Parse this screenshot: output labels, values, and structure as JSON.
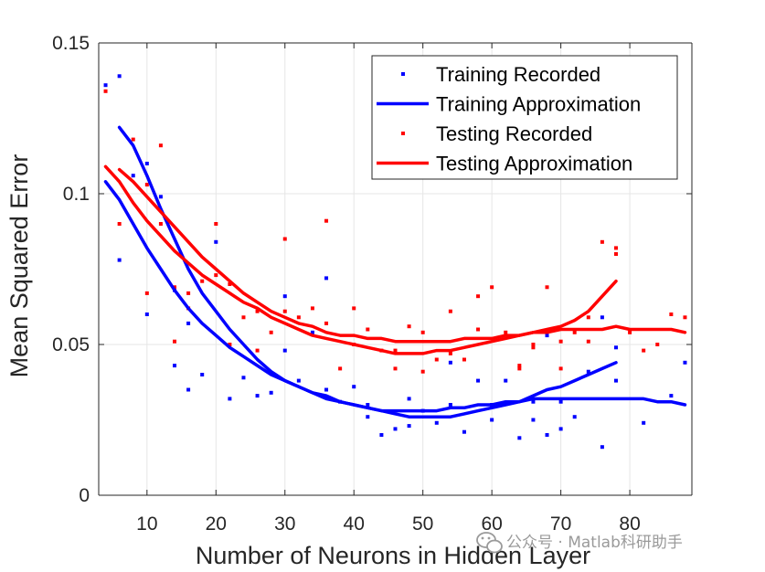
{
  "chart_data": {
    "type": "scatter",
    "xlabel": "Number of Neurons in Hidden Layer",
    "ylabel": "Mean Squared Error",
    "xlim": [
      3,
      89
    ],
    "ylim": [
      0,
      0.15
    ],
    "xticks": [
      10,
      20,
      30,
      40,
      50,
      60,
      70,
      80
    ],
    "xtick_labels": [
      "10",
      "20",
      "30",
      "40",
      "50",
      "60",
      "70",
      "80"
    ],
    "yticks": [
      0,
      0.05,
      0.1,
      0.15
    ],
    "ytick_labels": [
      "0",
      "0.05",
      "0.1",
      "0.15"
    ],
    "grid": true,
    "legend_position": "top-right",
    "series": [
      {
        "name": "Training Recorded",
        "kind": "markers",
        "color": "#0000ff",
        "points": [
          [
            4,
            0.136
          ],
          [
            6,
            0.139
          ],
          [
            6,
            0.078
          ],
          [
            8,
            0.106
          ],
          [
            10,
            0.11
          ],
          [
            10,
            0.06
          ],
          [
            12,
            0.099
          ],
          [
            14,
            0.068
          ],
          [
            14,
            0.043
          ],
          [
            16,
            0.057
          ],
          [
            16,
            0.035
          ],
          [
            18,
            0.04
          ],
          [
            20,
            0.084
          ],
          [
            22,
            0.032
          ],
          [
            24,
            0.039
          ],
          [
            26,
            0.033
          ],
          [
            28,
            0.034
          ],
          [
            30,
            0.066
          ],
          [
            30,
            0.048
          ],
          [
            32,
            0.038
          ],
          [
            34,
            0.054
          ],
          [
            36,
            0.072
          ],
          [
            36,
            0.035
          ],
          [
            38,
            0.031
          ],
          [
            40,
            0.036
          ],
          [
            42,
            0.026
          ],
          [
            42,
            0.03
          ],
          [
            44,
            0.02
          ],
          [
            46,
            0.022
          ],
          [
            48,
            0.032
          ],
          [
            48,
            0.023
          ],
          [
            50,
            0.028
          ],
          [
            52,
            0.024
          ],
          [
            54,
            0.03
          ],
          [
            54,
            0.044
          ],
          [
            56,
            0.021
          ],
          [
            58,
            0.038
          ],
          [
            60,
            0.025
          ],
          [
            60,
            0.03
          ],
          [
            62,
            0.038
          ],
          [
            64,
            0.019
          ],
          [
            66,
            0.025
          ],
          [
            66,
            0.031
          ],
          [
            68,
            0.02
          ],
          [
            68,
            0.053
          ],
          [
            70,
            0.031
          ],
          [
            70,
            0.022
          ],
          [
            72,
            0.026
          ],
          [
            74,
            0.041
          ],
          [
            76,
            0.016
          ],
          [
            76,
            0.059
          ],
          [
            78,
            0.038
          ],
          [
            78,
            0.049
          ],
          [
            82,
            0.024
          ],
          [
            86,
            0.033
          ],
          [
            88,
            0.044
          ]
        ]
      },
      {
        "name": "Testing Recorded",
        "kind": "markers",
        "color": "#ff0000",
        "points": [
          [
            4,
            0.134
          ],
          [
            6,
            0.09
          ],
          [
            8,
            0.118
          ],
          [
            10,
            0.067
          ],
          [
            10,
            0.103
          ],
          [
            12,
            0.116
          ],
          [
            12,
            0.09
          ],
          [
            14,
            0.051
          ],
          [
            14,
            0.069
          ],
          [
            16,
            0.067
          ],
          [
            16,
            0.062
          ],
          [
            18,
            0.071
          ],
          [
            20,
            0.09
          ],
          [
            20,
            0.073
          ],
          [
            22,
            0.07
          ],
          [
            22,
            0.05
          ],
          [
            24,
            0.059
          ],
          [
            26,
            0.061
          ],
          [
            26,
            0.048
          ],
          [
            28,
            0.054
          ],
          [
            30,
            0.085
          ],
          [
            30,
            0.061
          ],
          [
            32,
            0.059
          ],
          [
            34,
            0.062
          ],
          [
            36,
            0.091
          ],
          [
            36,
            0.057
          ],
          [
            38,
            0.042
          ],
          [
            40,
            0.062
          ],
          [
            40,
            0.05
          ],
          [
            42,
            0.055
          ],
          [
            44,
            0.048
          ],
          [
            46,
            0.042
          ],
          [
            46,
            0.048
          ],
          [
            48,
            0.056
          ],
          [
            50,
            0.054
          ],
          [
            50,
            0.041
          ],
          [
            52,
            0.045
          ],
          [
            54,
            0.061
          ],
          [
            54,
            0.047
          ],
          [
            56,
            0.045
          ],
          [
            58,
            0.066
          ],
          [
            58,
            0.055
          ],
          [
            60,
            0.069
          ],
          [
            62,
            0.054
          ],
          [
            64,
            0.043
          ],
          [
            64,
            0.042
          ],
          [
            66,
            0.049
          ],
          [
            66,
            0.05
          ],
          [
            68,
            0.069
          ],
          [
            70,
            0.042
          ],
          [
            70,
            0.051
          ],
          [
            72,
            0.054
          ],
          [
            74,
            0.059
          ],
          [
            74,
            0.051
          ],
          [
            76,
            0.084
          ],
          [
            78,
            0.082
          ],
          [
            78,
            0.08
          ],
          [
            80,
            0.054
          ],
          [
            82,
            0.048
          ],
          [
            84,
            0.05
          ],
          [
            86,
            0.06
          ],
          [
            88,
            0.059
          ]
        ]
      },
      {
        "name": "Training Approximation",
        "kind": "lines",
        "color": "#0000ff",
        "show_in_legend": true,
        "curves": [
          [
            [
              6,
              0.122
            ],
            [
              8,
              0.116
            ],
            [
              10,
              0.106
            ],
            [
              12,
              0.095
            ],
            [
              14,
              0.085
            ],
            [
              16,
              0.075
            ],
            [
              18,
              0.067
            ],
            [
              20,
              0.061
            ],
            [
              22,
              0.055
            ],
            [
              24,
              0.05
            ],
            [
              26,
              0.045
            ],
            [
              28,
              0.041
            ],
            [
              30,
              0.038
            ],
            [
              32,
              0.036
            ],
            [
              34,
              0.034
            ],
            [
              36,
              0.032
            ],
            [
              38,
              0.031
            ],
            [
              40,
              0.03
            ],
            [
              42,
              0.029
            ],
            [
              44,
              0.028
            ],
            [
              46,
              0.028
            ],
            [
              48,
              0.028
            ],
            [
              50,
              0.028
            ],
            [
              52,
              0.028
            ],
            [
              54,
              0.029
            ],
            [
              56,
              0.029
            ],
            [
              58,
              0.03
            ],
            [
              60,
              0.03
            ],
            [
              62,
              0.031
            ],
            [
              64,
              0.031
            ],
            [
              66,
              0.032
            ],
            [
              68,
              0.032
            ],
            [
              70,
              0.032
            ],
            [
              72,
              0.032
            ],
            [
              74,
              0.032
            ],
            [
              76,
              0.032
            ],
            [
              78,
              0.032
            ],
            [
              80,
              0.032
            ],
            [
              82,
              0.032
            ],
            [
              84,
              0.031
            ],
            [
              86,
              0.031
            ],
            [
              88,
              0.03
            ]
          ],
          [
            [
              4,
              0.104
            ],
            [
              6,
              0.098
            ],
            [
              8,
              0.09
            ],
            [
              10,
              0.082
            ],
            [
              12,
              0.075
            ],
            [
              14,
              0.068
            ],
            [
              16,
              0.062
            ],
            [
              18,
              0.057
            ],
            [
              20,
              0.053
            ],
            [
              22,
              0.049
            ],
            [
              24,
              0.046
            ],
            [
              26,
              0.043
            ],
            [
              28,
              0.04
            ],
            [
              30,
              0.038
            ],
            [
              32,
              0.036
            ],
            [
              34,
              0.034
            ],
            [
              36,
              0.033
            ],
            [
              38,
              0.031
            ],
            [
              40,
              0.03
            ],
            [
              42,
              0.029
            ],
            [
              44,
              0.028
            ],
            [
              46,
              0.027
            ],
            [
              48,
              0.026
            ],
            [
              50,
              0.026
            ],
            [
              52,
              0.026
            ],
            [
              54,
              0.026
            ],
            [
              56,
              0.027
            ],
            [
              58,
              0.028
            ],
            [
              60,
              0.029
            ],
            [
              62,
              0.03
            ],
            [
              64,
              0.031
            ],
            [
              66,
              0.033
            ],
            [
              68,
              0.035
            ],
            [
              70,
              0.036
            ],
            [
              72,
              0.038
            ],
            [
              74,
              0.04
            ],
            [
              76,
              0.042
            ],
            [
              78,
              0.044
            ]
          ]
        ]
      },
      {
        "name": "Testing Approximation",
        "kind": "lines",
        "color": "#ff0000",
        "show_in_legend": true,
        "curves": [
          [
            [
              4,
              0.109
            ],
            [
              6,
              0.104
            ],
            [
              8,
              0.097
            ],
            [
              10,
              0.091
            ],
            [
              12,
              0.086
            ],
            [
              14,
              0.081
            ],
            [
              16,
              0.077
            ],
            [
              18,
              0.073
            ],
            [
              20,
              0.07
            ],
            [
              22,
              0.067
            ],
            [
              24,
              0.064
            ],
            [
              26,
              0.062
            ],
            [
              28,
              0.059
            ],
            [
              30,
              0.057
            ],
            [
              32,
              0.055
            ],
            [
              34,
              0.053
            ],
            [
              36,
              0.052
            ],
            [
              38,
              0.051
            ],
            [
              40,
              0.05
            ],
            [
              42,
              0.049
            ],
            [
              44,
              0.048
            ],
            [
              46,
              0.047
            ],
            [
              48,
              0.047
            ],
            [
              50,
              0.047
            ],
            [
              52,
              0.048
            ],
            [
              54,
              0.048
            ],
            [
              56,
              0.049
            ],
            [
              58,
              0.05
            ],
            [
              60,
              0.051
            ],
            [
              62,
              0.052
            ],
            [
              64,
              0.053
            ],
            [
              66,
              0.054
            ],
            [
              68,
              0.055
            ],
            [
              70,
              0.056
            ],
            [
              72,
              0.058
            ],
            [
              74,
              0.061
            ],
            [
              76,
              0.066
            ],
            [
              78,
              0.071
            ]
          ],
          [
            [
              6,
              0.108
            ],
            [
              8,
              0.104
            ],
            [
              10,
              0.099
            ],
            [
              12,
              0.094
            ],
            [
              14,
              0.089
            ],
            [
              16,
              0.084
            ],
            [
              18,
              0.079
            ],
            [
              20,
              0.075
            ],
            [
              22,
              0.071
            ],
            [
              24,
              0.067
            ],
            [
              26,
              0.064
            ],
            [
              28,
              0.061
            ],
            [
              30,
              0.059
            ],
            [
              32,
              0.057
            ],
            [
              34,
              0.056
            ],
            [
              36,
              0.054
            ],
            [
              38,
              0.053
            ],
            [
              40,
              0.053
            ],
            [
              42,
              0.052
            ],
            [
              44,
              0.052
            ],
            [
              46,
              0.051
            ],
            [
              48,
              0.051
            ],
            [
              50,
              0.051
            ],
            [
              52,
              0.051
            ],
            [
              54,
              0.051
            ],
            [
              56,
              0.052
            ],
            [
              58,
              0.052
            ],
            [
              60,
              0.052
            ],
            [
              62,
              0.053
            ],
            [
              64,
              0.053
            ],
            [
              66,
              0.054
            ],
            [
              68,
              0.054
            ],
            [
              70,
              0.055
            ],
            [
              72,
              0.055
            ],
            [
              74,
              0.055
            ],
            [
              76,
              0.055
            ],
            [
              78,
              0.056
            ],
            [
              80,
              0.055
            ],
            [
              82,
              0.055
            ],
            [
              84,
              0.055
            ],
            [
              86,
              0.055
            ],
            [
              88,
              0.054
            ]
          ]
        ]
      }
    ],
    "legend": [
      {
        "label": "Training Recorded",
        "kind": "marker",
        "color": "#0000ff"
      },
      {
        "label": "Training Approximation",
        "kind": "line",
        "color": "#0000ff"
      },
      {
        "label": "Testing Recorded",
        "kind": "marker",
        "color": "#ff0000"
      },
      {
        "label": "Testing Approximation",
        "kind": "line",
        "color": "#ff0000"
      }
    ]
  },
  "watermark": {
    "icon": "wechat-icon",
    "text": "公众号 · Matlab科研助手"
  }
}
